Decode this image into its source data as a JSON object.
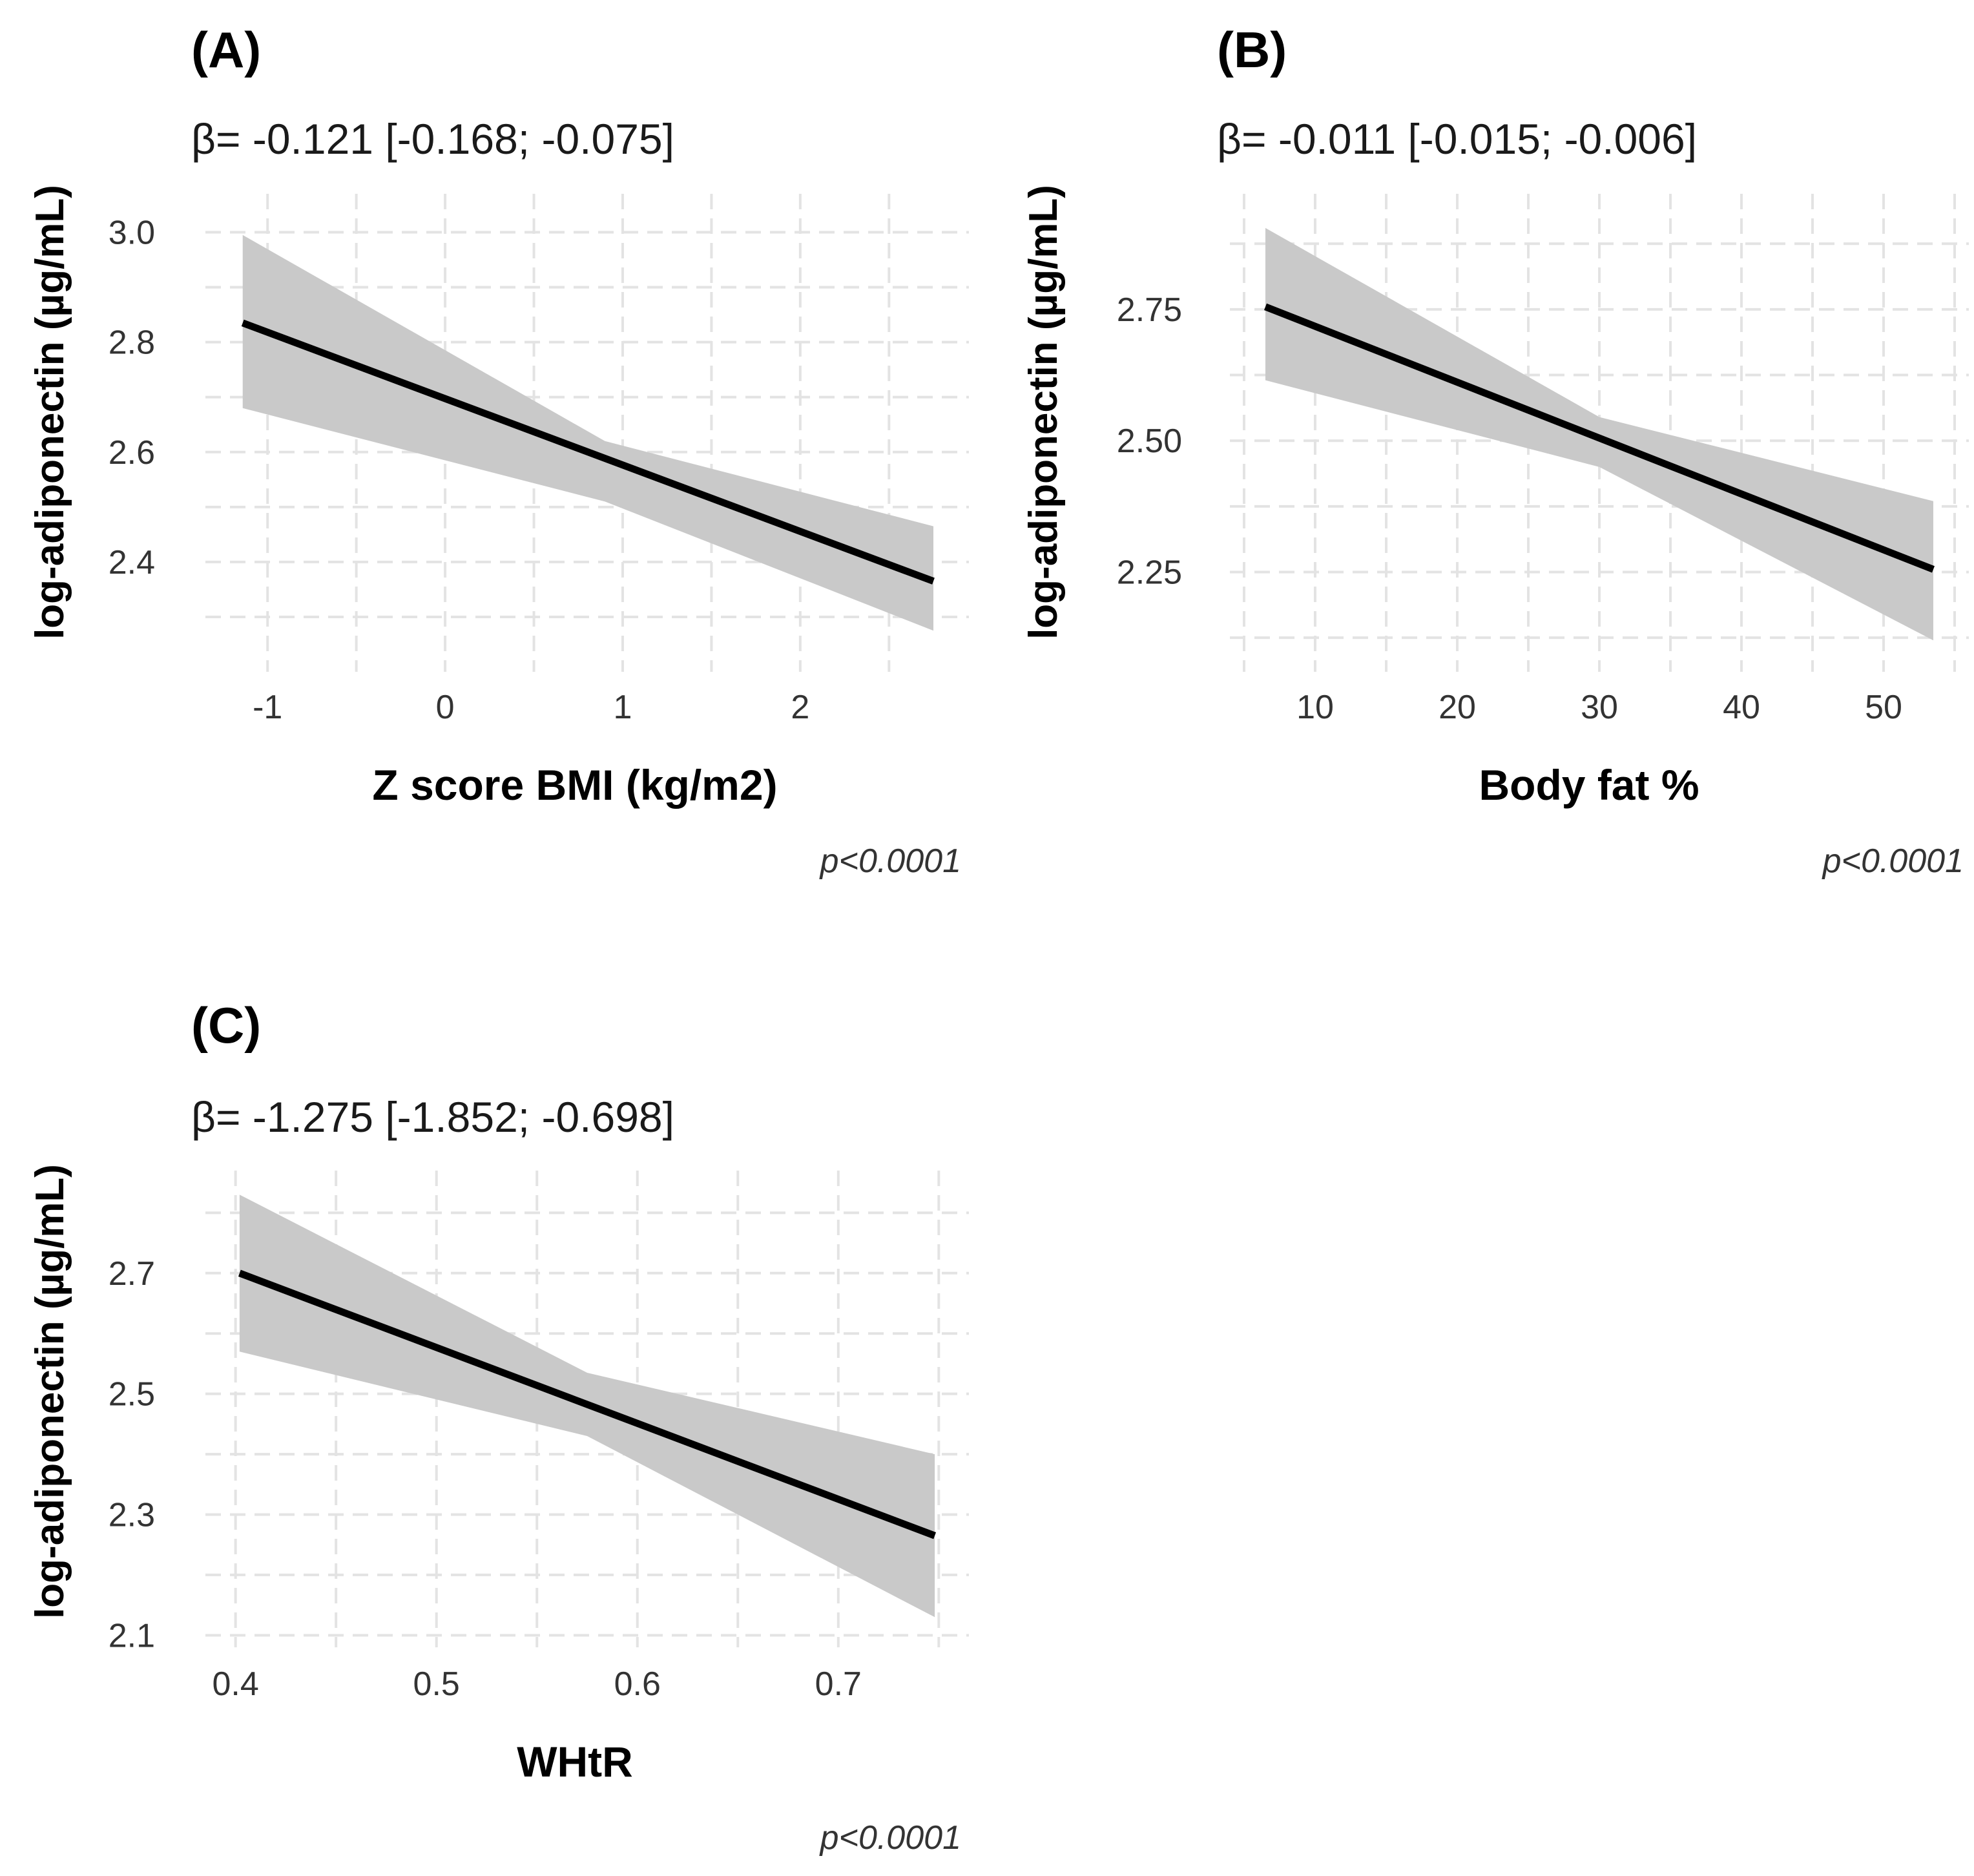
{
  "chart_data": [
    {
      "type": "line",
      "panel_label": "(A)",
      "annotation": "β= -0.121 [-0.168; -0.075]",
      "xlabel": "Z score BMI (kg/m2)",
      "ylabel": "log-adiponectin (µg/mL)",
      "p_value": "p<0.0001",
      "xlim": [
        -1.35,
        2.95
      ],
      "ylim": [
        2.2,
        3.07
      ],
      "xticks": [
        -1,
        0,
        1,
        2
      ],
      "xtick_labels": [
        "-1",
        "0",
        "1",
        "2"
      ],
      "yticks": [
        2.4,
        2.6,
        2.8,
        3.0
      ],
      "ytick_labels": [
        "2.4",
        "2.6",
        "2.8",
        "3.0"
      ],
      "series": [
        {
          "name": "fit",
          "x": [
            -1.14,
            2.75
          ],
          "y": [
            2.835,
            2.365
          ]
        },
        {
          "name": "ci_upper",
          "x": [
            -1.14,
            0.9,
            2.75
          ],
          "y": [
            2.995,
            2.62,
            2.465
          ]
        },
        {
          "name": "ci_lower",
          "x": [
            -1.14,
            0.9,
            2.75
          ],
          "y": [
            2.68,
            2.51,
            2.275
          ]
        }
      ],
      "grid": true
    },
    {
      "type": "line",
      "panel_label": "(B)",
      "annotation": "β= -0.011 [-0.015; -0.006]",
      "xlabel": "Body fat %",
      "ylabel": "log-adiponectin (µg/mL)",
      "p_value": "p<0.0001",
      "xlim": [
        4,
        56
      ],
      "ylim": [
        2.06,
        2.97
      ],
      "xticks": [
        10,
        20,
        30,
        40,
        50
      ],
      "xtick_labels": [
        "10",
        "20",
        "30",
        "40",
        "50"
      ],
      "yticks": [
        2.25,
        2.5,
        2.75
      ],
      "ytick_labels": [
        "2.25",
        "2.50",
        "2.75"
      ],
      "series": [
        {
          "name": "fit",
          "x": [
            6.5,
            53.5
          ],
          "y": [
            2.755,
            2.255
          ]
        },
        {
          "name": "ci_upper",
          "x": [
            6.5,
            30,
            53.5
          ],
          "y": [
            2.905,
            2.545,
            2.385
          ]
        },
        {
          "name": "ci_lower",
          "x": [
            6.5,
            30,
            53.5
          ],
          "y": [
            2.615,
            2.45,
            2.12
          ]
        }
      ],
      "grid": true
    },
    {
      "type": "line",
      "panel_label": "(C)",
      "annotation": "β= -1.275 [-1.852; -0.698]",
      "xlabel": "WHtR",
      "ylabel": "log-adiponectin (µg/mL)",
      "p_value": "p<0.0001",
      "xlim": [
        0.385,
        0.765
      ],
      "ylim": [
        2.08,
        2.87
      ],
      "xticks": [
        0.4,
        0.5,
        0.6,
        0.7
      ],
      "xtick_labels": [
        "0.4",
        "0.5",
        "0.6",
        "0.7"
      ],
      "yticks": [
        2.1,
        2.3,
        2.5,
        2.7
      ],
      "ytick_labels": [
        "2.1",
        "2.3",
        "2.5",
        "2.7"
      ],
      "series": [
        {
          "name": "fit",
          "x": [
            0.402,
            0.748
          ],
          "y": [
            2.7,
            2.265
          ]
        },
        {
          "name": "ci_upper",
          "x": [
            0.402,
            0.575,
            0.748
          ],
          "y": [
            2.83,
            2.535,
            2.4
          ]
        },
        {
          "name": "ci_lower",
          "x": [
            0.402,
            0.575,
            0.748
          ],
          "y": [
            2.57,
            2.43,
            2.13
          ]
        }
      ],
      "grid": true
    }
  ]
}
